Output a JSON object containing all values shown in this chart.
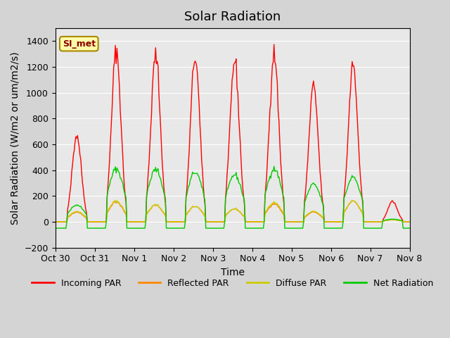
{
  "title": "Solar Radiation",
  "xlabel": "Time",
  "ylabel": "Solar Radiation (W/m2 or um/m2/s)",
  "ylim": [
    -200,
    1500
  ],
  "yticks": [
    -200,
    0,
    200,
    400,
    600,
    800,
    1000,
    1200,
    1400
  ],
  "fig_bg_color": "#d4d4d4",
  "plot_bg_color": "#e8e8e8",
  "line_colors": {
    "incoming": "#ff0000",
    "reflected": "#ff8800",
    "diffuse": "#cccc00",
    "net": "#00cc00"
  },
  "legend_labels": [
    "Incoming PAR",
    "Reflected PAR",
    "Diffuse PAR",
    "Net Radiation"
  ],
  "tick_labels": [
    "Oct 30",
    "Oct 31",
    "Nov 1",
    "Nov 2",
    "Nov 3",
    "Nov 4",
    "Nov 5",
    "Nov 6",
    "Nov 7",
    "Nov 8"
  ],
  "watermark_text": "SI_met",
  "watermark_bg": "#ffffaa",
  "watermark_border": "#aa8800",
  "n_days": 9,
  "points_per_day": 48,
  "day_peaks_incoming": [
    670,
    1330,
    1295,
    1280,
    1250,
    1310,
    1050,
    1210,
    160
  ],
  "day_peaks_net": [
    130,
    410,
    405,
    385,
    365,
    410,
    290,
    345,
    20
  ],
  "day_peaks_reflected": [
    75,
    155,
    130,
    120,
    100,
    140,
    75,
    160,
    15
  ],
  "day_peaks_diffuse": [
    80,
    160,
    130,
    120,
    100,
    150,
    80,
    160,
    15
  ],
  "night_net": -50,
  "title_fontsize": 13,
  "axis_fontsize": 10,
  "tick_fontsize": 9
}
